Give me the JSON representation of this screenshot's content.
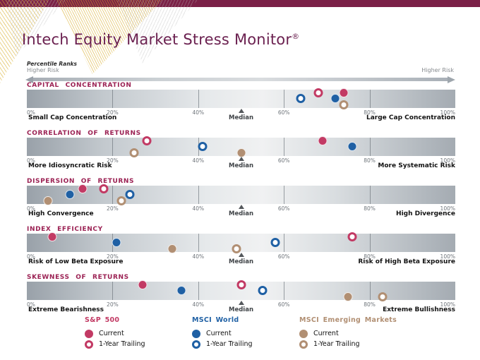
{
  "header": {
    "title": "Intech Equity Market Stress Monitor",
    "registered": "®"
  },
  "scale": {
    "percentile_ranks_label": "Percentile Ranks",
    "higher_risk_left": "Higher Risk",
    "higher_risk_right": "Higher Risk",
    "tick_labels": [
      "0%",
      "20%",
      "40%",
      "60%",
      "80%",
      "100%"
    ],
    "tick_positions": [
      0,
      20,
      40,
      60,
      80,
      100
    ],
    "band_ticks": [
      20,
      40,
      60,
      80
    ],
    "median_label": "Median",
    "median_value": 50
  },
  "colors": {
    "topbar": "#7B2147",
    "title": "#6B2150",
    "category": "#9B2153",
    "sp500": "#C23A64",
    "msci_world": "#1F60A4",
    "msci_em": "#B18F73"
  },
  "chart_data": [
    {
      "type": "scatter",
      "title": "CAPITAL CONCENTRATION",
      "left_label": "Small Cap Concentration",
      "right_label": "Large Cap Concentration",
      "xlim": [
        0,
        100
      ],
      "median": 50,
      "points": [
        {
          "series": "msci_em",
          "kind": "current",
          "value": 74
        },
        {
          "series": "msci_world",
          "kind": "current",
          "value": 72
        },
        {
          "series": "sp500",
          "kind": "current",
          "value": 74
        },
        {
          "series": "sp500",
          "kind": "trailing",
          "value": 68
        },
        {
          "series": "msci_world",
          "kind": "trailing",
          "value": 64
        },
        {
          "series": "msci_em",
          "kind": "trailing",
          "value": 74
        }
      ]
    },
    {
      "type": "scatter",
      "title": "CORRELATION OF RETURNS",
      "left_label": "More Idiosyncratic Risk",
      "right_label": "More Systematic Risk",
      "xlim": [
        0,
        100
      ],
      "median": 50,
      "points": [
        {
          "series": "msci_em",
          "kind": "current",
          "value": 50
        },
        {
          "series": "msci_world",
          "kind": "current",
          "value": 76
        },
        {
          "series": "sp500",
          "kind": "current",
          "value": 69
        },
        {
          "series": "sp500",
          "kind": "trailing",
          "value": 28
        },
        {
          "series": "msci_world",
          "kind": "trailing",
          "value": 41
        },
        {
          "series": "msci_em",
          "kind": "trailing",
          "value": 25
        }
      ]
    },
    {
      "type": "scatter",
      "title": "DISPERSION OF RETURNS",
      "left_label": "High Convergence",
      "right_label": "High Divergence",
      "xlim": [
        0,
        100
      ],
      "median": 50,
      "points": [
        {
          "series": "msci_em",
          "kind": "current",
          "value": 5
        },
        {
          "series": "msci_world",
          "kind": "current",
          "value": 10
        },
        {
          "series": "sp500",
          "kind": "current",
          "value": 13
        },
        {
          "series": "sp500",
          "kind": "trailing",
          "value": 18
        },
        {
          "series": "msci_world",
          "kind": "trailing",
          "value": 24
        },
        {
          "series": "msci_em",
          "kind": "trailing",
          "value": 22
        }
      ]
    },
    {
      "type": "scatter",
      "title": "INDEX EFFICIENCY",
      "left_label": "Risk of Low Beta Exposure",
      "right_label": "Risk of High Beta Exposure",
      "xlim": [
        0,
        100
      ],
      "median": 50,
      "points": [
        {
          "series": "msci_em",
          "kind": "current",
          "value": 34
        },
        {
          "series": "msci_world",
          "kind": "current",
          "value": 21
        },
        {
          "series": "sp500",
          "kind": "current",
          "value": 6
        },
        {
          "series": "sp500",
          "kind": "trailing",
          "value": 76
        },
        {
          "series": "msci_world",
          "kind": "trailing",
          "value": 58
        },
        {
          "series": "msci_em",
          "kind": "trailing",
          "value": 49
        }
      ]
    },
    {
      "type": "scatter",
      "title": "SKEWNESS OF RETURNS",
      "left_label": "Extreme Bearishness",
      "right_label": "Extreme Bullishness",
      "xlim": [
        0,
        100
      ],
      "median": 50,
      "points": [
        {
          "series": "msci_em",
          "kind": "current",
          "value": 75
        },
        {
          "series": "msci_world",
          "kind": "current",
          "value": 36
        },
        {
          "series": "sp500",
          "kind": "current",
          "value": 27
        },
        {
          "series": "sp500",
          "kind": "trailing",
          "value": 50
        },
        {
          "series": "msci_world",
          "kind": "trailing",
          "value": 55
        },
        {
          "series": "msci_em",
          "kind": "trailing",
          "value": 83
        }
      ]
    }
  ],
  "legend": {
    "groups": [
      {
        "series_key": "sp500",
        "name": "S&P 500",
        "items": [
          "Current",
          "1-Year Trailing"
        ]
      },
      {
        "series_key": "msci_world",
        "name": "MSCI World",
        "items": [
          "Current",
          "1-Year Trailing"
        ]
      },
      {
        "series_key": "msci_em",
        "name": "MSCI Emerging Markets",
        "items": [
          "Current",
          "1-Year Trailing"
        ]
      }
    ]
  }
}
